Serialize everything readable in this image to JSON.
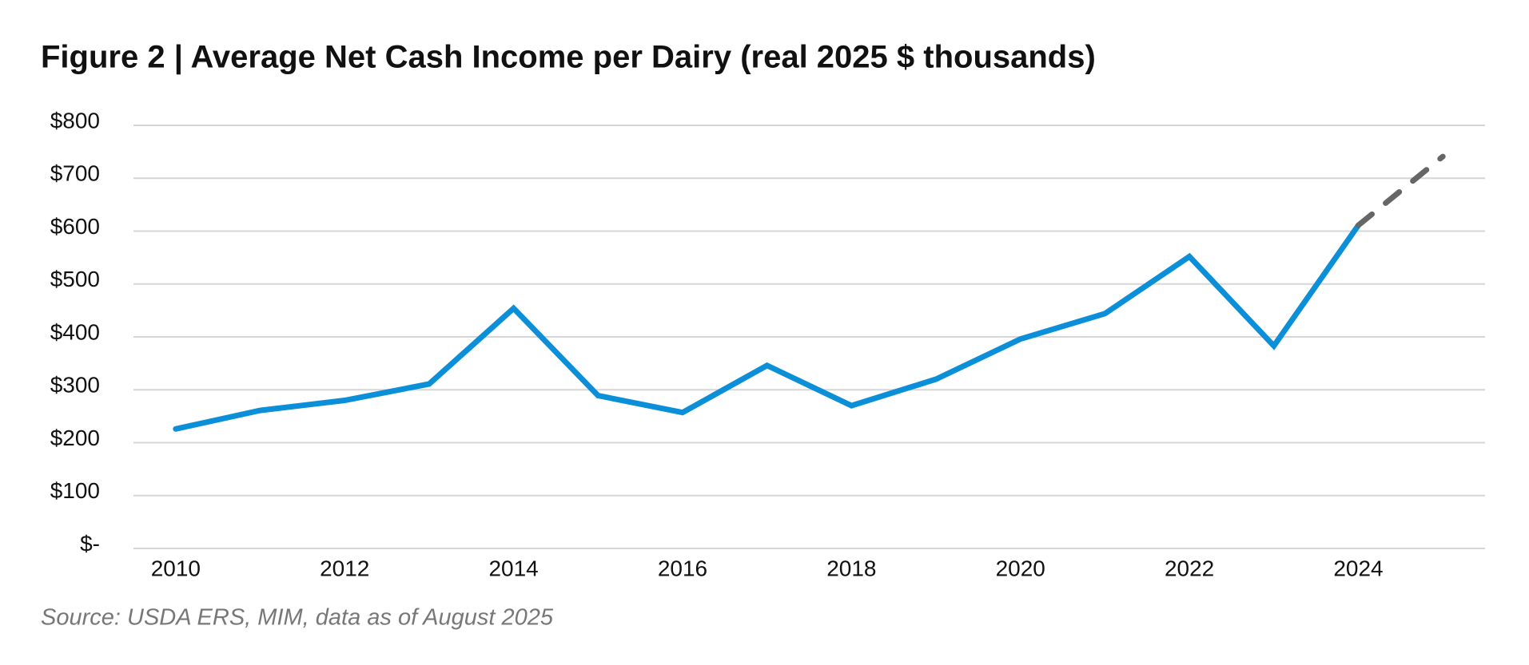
{
  "chart_data": {
    "type": "line",
    "title": "Figure 2 | Average Net Cash Income per Dairy (real 2025 $ thousands)",
    "source": "Source: USDA ERS, MIM, data as of August 2025",
    "x": [
      2010,
      2011,
      2012,
      2013,
      2014,
      2015,
      2016,
      2017,
      2018,
      2019,
      2020,
      2021,
      2022,
      2023,
      2024,
      2025
    ],
    "series": [
      {
        "color": "#0b8fd8",
        "dash": false,
        "values": [
          226,
          261,
          280,
          311,
          454,
          289,
          257,
          346,
          270,
          320,
          396,
          444,
          552,
          383,
          611,
          null
        ]
      },
      {
        "color": "#666666",
        "dash": true,
        "values": [
          null,
          null,
          null,
          null,
          null,
          null,
          null,
          null,
          null,
          null,
          null,
          null,
          null,
          null,
          611,
          741
        ]
      }
    ],
    "xlim": [
      2009.5,
      2025.5
    ],
    "xticks": [
      2010,
      2012,
      2014,
      2016,
      2018,
      2020,
      2022,
      2024
    ],
    "ylim": [
      0,
      800
    ],
    "yticks": [
      {
        "value": 0,
        "label": "$-"
      },
      {
        "value": 100,
        "label": "$100"
      },
      {
        "value": 200,
        "label": "$200"
      },
      {
        "value": 300,
        "label": "$300"
      },
      {
        "value": 400,
        "label": "$400"
      },
      {
        "value": 500,
        "label": "$500"
      },
      {
        "value": 600,
        "label": "$600"
      },
      {
        "value": 700,
        "label": "$700"
      },
      {
        "value": 800,
        "label": "$800"
      }
    ],
    "grid": true
  }
}
